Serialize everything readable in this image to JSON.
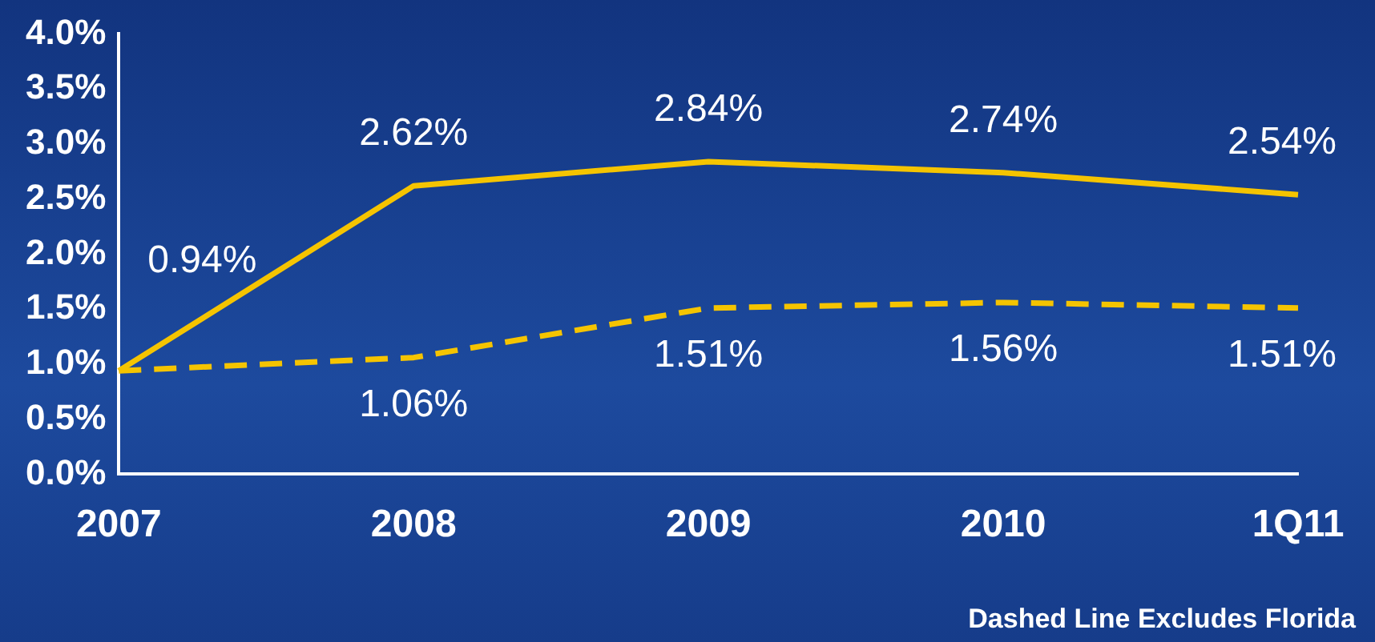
{
  "chart_data": {
    "type": "line",
    "categories": [
      "2007",
      "2008",
      "2009",
      "2010",
      "1Q11"
    ],
    "series": [
      {
        "color": "#f5c400",
        "line_style": "solid",
        "values": [
          0.94,
          2.62,
          2.84,
          2.74,
          2.54
        ],
        "value_labels": [
          "0.94%",
          "2.62%",
          "2.84%",
          "2.74%",
          "2.54%"
        ]
      },
      {
        "color": "#f5c400",
        "line_style": "dashed",
        "values": [
          0.94,
          1.06,
          1.51,
          1.56,
          1.51
        ],
        "value_labels": [
          null,
          "1.06%",
          "1.51%",
          "1.56%",
          "1.51%"
        ]
      }
    ],
    "ylim": [
      0,
      4
    ],
    "yticks": [
      {
        "value": 0,
        "label": "0.0%"
      },
      {
        "value": 0.5,
        "label": "0.5%"
      },
      {
        "value": 1,
        "label": "1.0%"
      },
      {
        "value": 1.5,
        "label": "1.5%"
      },
      {
        "value": 2,
        "label": "2.0%"
      },
      {
        "value": 2.5,
        "label": "2.5%"
      },
      {
        "value": 3,
        "label": "3.0%"
      },
      {
        "value": 3.5,
        "label": "3.5%"
      },
      {
        "value": 4,
        "label": "4.0%"
      }
    ],
    "grid": false,
    "legend": false,
    "marker": "none",
    "annotations": [
      "Dashed Line Excludes Florida"
    ]
  }
}
